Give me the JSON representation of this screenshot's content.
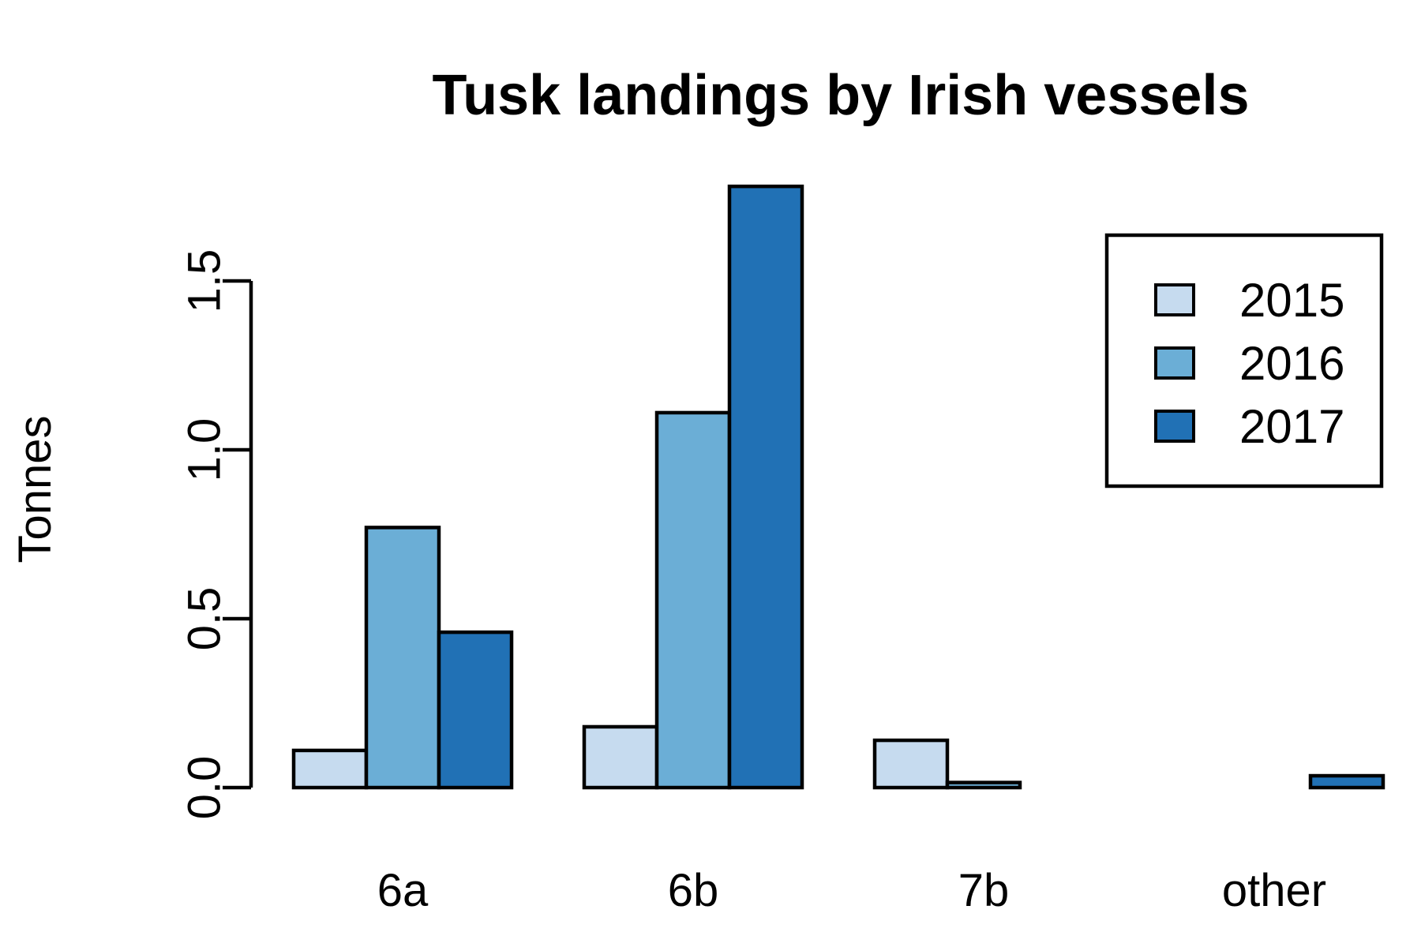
{
  "chart_data": {
    "type": "bar",
    "title": "Tusk landings by Irish vessels",
    "xlabel": "",
    "ylabel": "Tonnes",
    "categories": [
      "6a",
      "6b",
      "7b",
      "other"
    ],
    "series": [
      {
        "name": "2015",
        "color": "#c6dbef",
        "values": [
          0.11,
          0.18,
          0.14,
          0.0
        ]
      },
      {
        "name": "2016",
        "color": "#6baed6",
        "values": [
          0.77,
          1.11,
          0.015,
          0.0
        ]
      },
      {
        "name": "2017",
        "color": "#2171b5",
        "values": [
          0.46,
          1.78,
          0.0,
          0.035
        ]
      }
    ],
    "yticks": [
      0.0,
      0.5,
      1.0,
      1.5
    ],
    "ytick_labels": [
      "0.0",
      "0.5",
      "1.0",
      "1.5"
    ],
    "ylim": [
      0,
      1.8
    ],
    "grid": false,
    "legend_position": "top-right"
  }
}
